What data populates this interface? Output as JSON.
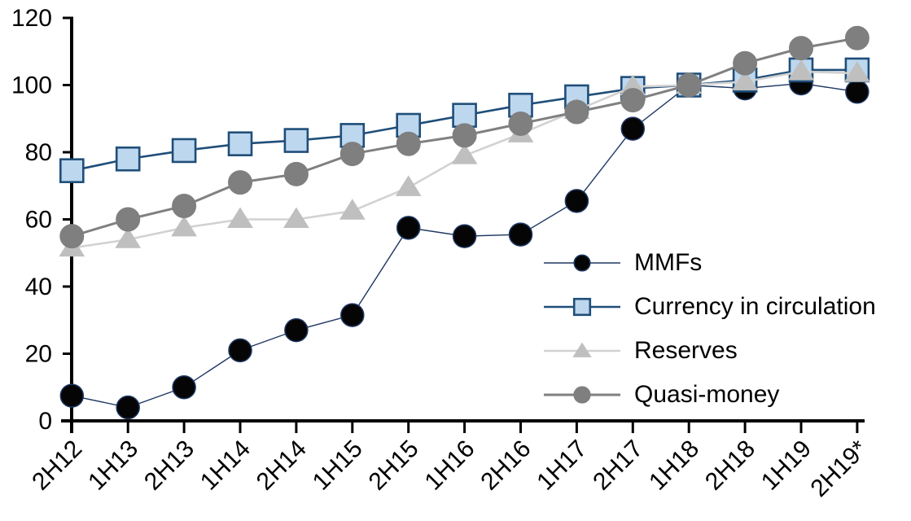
{
  "chart_data": {
    "type": "line",
    "title": "",
    "xlabel": "",
    "ylabel": "",
    "ylim": [
      0,
      120
    ],
    "y_ticks": [
      0,
      20,
      40,
      60,
      80,
      100,
      120
    ],
    "grid": false,
    "legend_position": "inside-right",
    "categories": [
      "2H12",
      "1H13",
      "2H13",
      "1H14",
      "2H14",
      "1H15",
      "2H15",
      "1H16",
      "2H16",
      "1H17",
      "2H17",
      "1H18",
      "2H18",
      "1H19",
      "2H19*"
    ],
    "series": [
      {
        "name": "MMFs",
        "marker": "circle",
        "values": [
          7.5,
          4,
          10,
          21,
          27,
          31.5,
          57.5,
          55,
          55.5,
          65.5,
          87,
          100,
          99,
          100.5,
          98
        ],
        "line_color": "#1f3864",
        "line_width": 1.4,
        "marker_fill": "#050505",
        "marker_stroke": "#1f3864",
        "marker_stroke_width": 1.5,
        "marker_size": 14
      },
      {
        "name": "Currency in circulation",
        "marker": "square",
        "values": [
          74.5,
          78,
          80.5,
          82.5,
          83.5,
          85,
          88,
          91,
          94,
          96.5,
          99,
          100,
          101.5,
          104.5,
          104.5
        ],
        "line_color": "#1f4e79",
        "line_width": 2.6,
        "marker_fill": "#bdd7ee",
        "marker_stroke": "#1f4e79",
        "marker_stroke_width": 2.6,
        "marker_size": 14
      },
      {
        "name": "Reserves",
        "marker": "triangle",
        "values": [
          51.5,
          54,
          57.5,
          60,
          60,
          62.5,
          69.5,
          79,
          85.5,
          92.5,
          99.5,
          100,
          101,
          104,
          103.5
        ],
        "line_color": "#d2d2d2",
        "line_width": 2.6,
        "marker_fill": "#bfbfbf",
        "marker_stroke": "#bfbfbf",
        "marker_stroke_width": 1,
        "marker_size": 14
      },
      {
        "name": "Quasi-money",
        "marker": "circle",
        "values": [
          55,
          60,
          64,
          71,
          73.5,
          79.5,
          82.5,
          85,
          88.5,
          92,
          95.5,
          100,
          106.5,
          111,
          114
        ],
        "line_color": "#808080",
        "line_width": 3,
        "marker_fill": "#7f7f7f",
        "marker_stroke": "#7f7f7f",
        "marker_stroke_width": 1,
        "marker_size": 14.5
      }
    ],
    "axis_color": "#000000"
  }
}
